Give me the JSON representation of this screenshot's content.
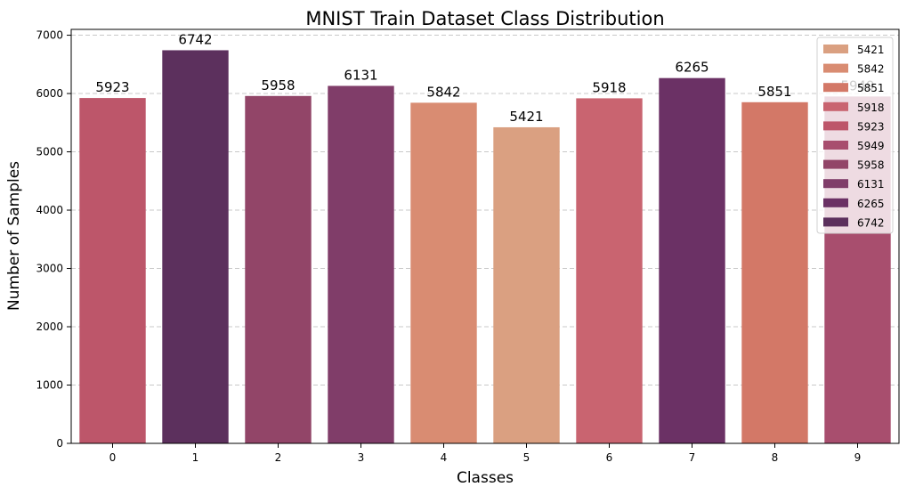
{
  "chart_data": {
    "type": "bar",
    "title": "MNIST Train Dataset Class Distribution",
    "xlabel": "Classes",
    "ylabel": "Number of Samples",
    "categories": [
      "0",
      "1",
      "2",
      "3",
      "4",
      "5",
      "6",
      "7",
      "8",
      "9"
    ],
    "values": [
      5923,
      6742,
      5958,
      6131,
      5842,
      5421,
      5918,
      6265,
      5851,
      5949
    ],
    "data_labels": [
      "5923",
      "6742",
      "5958",
      "6131",
      "5842",
      "5421",
      "5918",
      "6265",
      "5851",
      "5949"
    ],
    "ylim": [
      0,
      7100
    ],
    "yticks": [
      0,
      1000,
      2000,
      3000,
      4000,
      5000,
      6000,
      7000
    ],
    "grid": "y-dashed",
    "legend": {
      "placement": "top-right",
      "entries": [
        "5421",
        "5842",
        "5851",
        "5918",
        "5923",
        "5949",
        "5958",
        "6131",
        "6265",
        "6742"
      ],
      "colors": [
        "#daa081",
        "#d98c72",
        "#d37867",
        "#c96470",
        "#bd566a",
        "#a84e6e",
        "#924568",
        "#803d69",
        "#6b3165",
        "#5c305d"
      ]
    },
    "bar_colors": [
      "#bd566a",
      "#5c305d",
      "#924568",
      "#803d69",
      "#d98c72",
      "#daa081",
      "#c96470",
      "#6b3165",
      "#d37867",
      "#a84e6e"
    ]
  }
}
